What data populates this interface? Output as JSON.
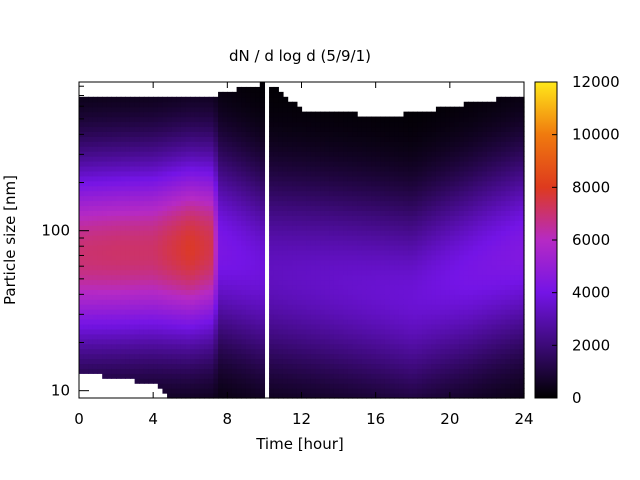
{
  "chart_data": {
    "type": "heatmap",
    "title": "dN / d log d (5/9/1)",
    "xlabel": "Time [hour]",
    "ylabel": "Particle size [nm]",
    "x_range": [
      0,
      24
    ],
    "x_ticks": [
      0,
      4,
      8,
      12,
      16,
      20,
      24
    ],
    "y_scale": "log",
    "y_range": [
      9,
      850
    ],
    "y_ticks": [
      10,
      100
    ],
    "y_tick_labels": [
      "10",
      "100"
    ],
    "colorbar": {
      "range": [
        0,
        12000
      ],
      "ticks": [
        0,
        2000,
        4000,
        6000,
        8000,
        10000,
        12000
      ],
      "colors": [
        "#000000",
        "#3c0a78",
        "#7414e6",
        "#b62ac4",
        "#de3a1e",
        "#f07a0e",
        "#ffe81a"
      ]
    },
    "data_gap_hours": [
      10.0,
      10.3
    ],
    "profile_peak_diameter_nm": [
      {
        "t": 0,
        "d": 72
      },
      {
        "t": 4,
        "d": 75
      },
      {
        "t": 6,
        "d": 78
      },
      {
        "t": 7.4,
        "d": 80
      },
      {
        "t": 10.3,
        "d": 55
      },
      {
        "t": 14,
        "d": 48
      },
      {
        "t": 18,
        "d": 40
      },
      {
        "t": 21,
        "d": 55
      },
      {
        "t": 24,
        "d": 75
      }
    ],
    "profile_peak_value": [
      {
        "t": 0,
        "v": 7000
      },
      {
        "t": 2,
        "v": 7100
      },
      {
        "t": 4,
        "v": 7100
      },
      {
        "t": 6,
        "v": 7900
      },
      {
        "t": 7.2,
        "v": 7400
      },
      {
        "t": 7.6,
        "v": 4200
      },
      {
        "t": 10,
        "v": 3800
      },
      {
        "t": 10.3,
        "v": 3300
      },
      {
        "t": 14,
        "v": 3500
      },
      {
        "t": 18,
        "v": 3700
      },
      {
        "t": 21,
        "v": 4100
      },
      {
        "t": 24,
        "v": 4400
      }
    ],
    "profile_upper_limit_nm": [
      {
        "t": 0,
        "d": 680
      },
      {
        "t": 7.2,
        "d": 700
      },
      {
        "t": 10,
        "d": 830
      },
      {
        "t": 10.3,
        "d": 830
      },
      {
        "t": 12,
        "d": 560
      },
      {
        "t": 17,
        "d": 520
      },
      {
        "t": 24,
        "d": 700
      }
    ],
    "profile_lower_limit_nm": [
      {
        "t": 0,
        "d": 13
      },
      {
        "t": 4,
        "d": 11
      },
      {
        "t": 5,
        "d": 9
      },
      {
        "t": 10,
        "d": 9
      },
      {
        "t": 24,
        "d": 9
      }
    ]
  }
}
